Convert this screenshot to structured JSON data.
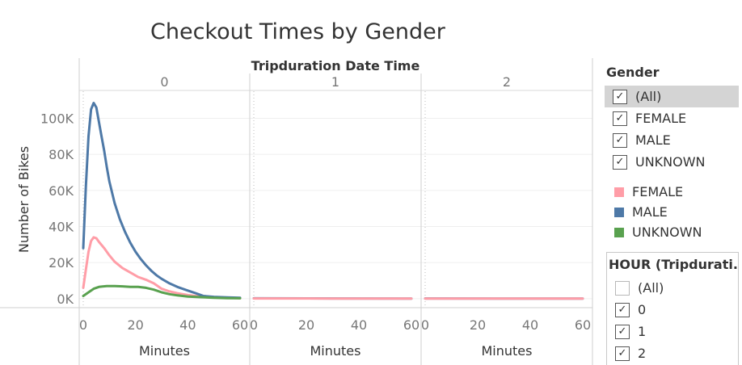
{
  "title": "Checkout Times by Gender",
  "column_header": "Tripduration Date Time",
  "chart_data": {
    "type": "line",
    "title": "Checkout Times by Gender",
    "column_dimension": "Tripduration Date Time",
    "xlabel": "Minutes",
    "ylabel": "Number of Bikes",
    "xlim": [
      0,
      60
    ],
    "ylim": [
      -5000,
      115000
    ],
    "x_ticks": [
      0,
      20,
      40,
      60
    ],
    "x_tick_labels": [
      "0",
      "20",
      "40",
      "60"
    ],
    "y_ticks": [
      0,
      20000,
      40000,
      60000,
      80000,
      100000
    ],
    "y_tick_labels": [
      "0K",
      "20K",
      "40K",
      "60K",
      "80K",
      "100K"
    ],
    "gridlines": true,
    "panels": [
      {
        "label": "0",
        "series": [
          {
            "name": "FEMALE",
            "color": "#ff9da7",
            "points": [
              [
                0,
                6000
              ],
              [
                1,
                16000
              ],
              [
                2,
                26000
              ],
              [
                3,
                32000
              ],
              [
                4,
                34000
              ],
              [
                5,
                33500
              ],
              [
                6,
                31500
              ],
              [
                8,
                28000
              ],
              [
                10,
                24000
              ],
              [
                12,
                20500
              ],
              [
                15,
                17000
              ],
              [
                18,
                14500
              ],
              [
                21,
                12000
              ],
              [
                24,
                10500
              ],
              [
                27,
                8500
              ],
              [
                30,
                5500
              ],
              [
                33,
                4000
              ],
              [
                36,
                3000
              ],
              [
                40,
                2000
              ],
              [
                45,
                1200
              ],
              [
                50,
                800
              ],
              [
                55,
                500
              ],
              [
                60,
                300
              ]
            ]
          },
          {
            "name": "MALE",
            "color": "#4e79a7",
            "points": [
              [
                0,
                28000
              ],
              [
                1,
                62000
              ],
              [
                2,
                90000
              ],
              [
                3,
                105000
              ],
              [
                4,
                108500
              ],
              [
                5,
                106000
              ],
              [
                6,
                98000
              ],
              [
                7,
                90000
              ],
              [
                8,
                82000
              ],
              [
                9,
                73000
              ],
              [
                10,
                65000
              ],
              [
                12,
                53000
              ],
              [
                14,
                44000
              ],
              [
                16,
                37000
              ],
              [
                18,
                31000
              ],
              [
                20,
                26000
              ],
              [
                22,
                22000
              ],
              [
                24,
                18500
              ],
              [
                26,
                15500
              ],
              [
                28,
                13000
              ],
              [
                30,
                11000
              ],
              [
                33,
                8500
              ],
              [
                36,
                6500
              ],
              [
                40,
                4500
              ],
              [
                43,
                3000
              ],
              [
                46,
                1500
              ],
              [
                50,
                1000
              ],
              [
                55,
                700
              ],
              [
                60,
                500
              ]
            ]
          },
          {
            "name": "UNKNOWN",
            "color": "#59a14f",
            "points": [
              [
                0,
                1500
              ],
              [
                2,
                3500
              ],
              [
                4,
                5500
              ],
              [
                6,
                6500
              ],
              [
                9,
                7000
              ],
              [
                12,
                7000
              ],
              [
                15,
                6800
              ],
              [
                18,
                6500
              ],
              [
                21,
                6500
              ],
              [
                24,
                6000
              ],
              [
                27,
                5000
              ],
              [
                30,
                3500
              ],
              [
                33,
                2500
              ],
              [
                36,
                1800
              ],
              [
                40,
                1200
              ],
              [
                45,
                800
              ],
              [
                50,
                500
              ],
              [
                55,
                300
              ],
              [
                60,
                200
              ]
            ]
          }
        ]
      },
      {
        "label": "1",
        "series": [
          {
            "name": "MALE",
            "color": "#4e79a7",
            "points": [
              [
                0,
                200
              ],
              [
                30,
                100
              ],
              [
                60,
                50
              ]
            ]
          },
          {
            "name": "FEMALE",
            "color": "#ff9da7",
            "points": [
              [
                0,
                100
              ],
              [
                30,
                50
              ],
              [
                60,
                30
              ]
            ]
          }
        ]
      },
      {
        "label": "2",
        "series": [
          {
            "name": "MALE",
            "color": "#4e79a7",
            "points": [
              [
                0,
                100
              ],
              [
                30,
                80
              ],
              [
                60,
                50
              ]
            ]
          },
          {
            "name": "FEMALE",
            "color": "#ff9da7",
            "points": [
              [
                0,
                60
              ],
              [
                30,
                40
              ],
              [
                60,
                30
              ]
            ]
          }
        ]
      }
    ]
  },
  "gender_filter": {
    "title": "Gender",
    "items": [
      {
        "label": "(All)",
        "checked": true,
        "selected": true
      },
      {
        "label": "FEMALE",
        "checked": true,
        "selected": false
      },
      {
        "label": "MALE",
        "checked": true,
        "selected": false
      },
      {
        "label": "UNKNOWN",
        "checked": true,
        "selected": false
      }
    ]
  },
  "legend": {
    "items": [
      {
        "label": "FEMALE",
        "color": "#ff9da7"
      },
      {
        "label": "MALE",
        "color": "#4e79a7"
      },
      {
        "label": "UNKNOWN",
        "color": "#59a14f"
      }
    ]
  },
  "hour_filter": {
    "title": "HOUR (Tripdurati..",
    "items": [
      {
        "label": "(All)",
        "checked": false
      },
      {
        "label": "0",
        "checked": true
      },
      {
        "label": "1",
        "checked": true
      },
      {
        "label": "2",
        "checked": true
      }
    ]
  },
  "check_glyph": "✓"
}
